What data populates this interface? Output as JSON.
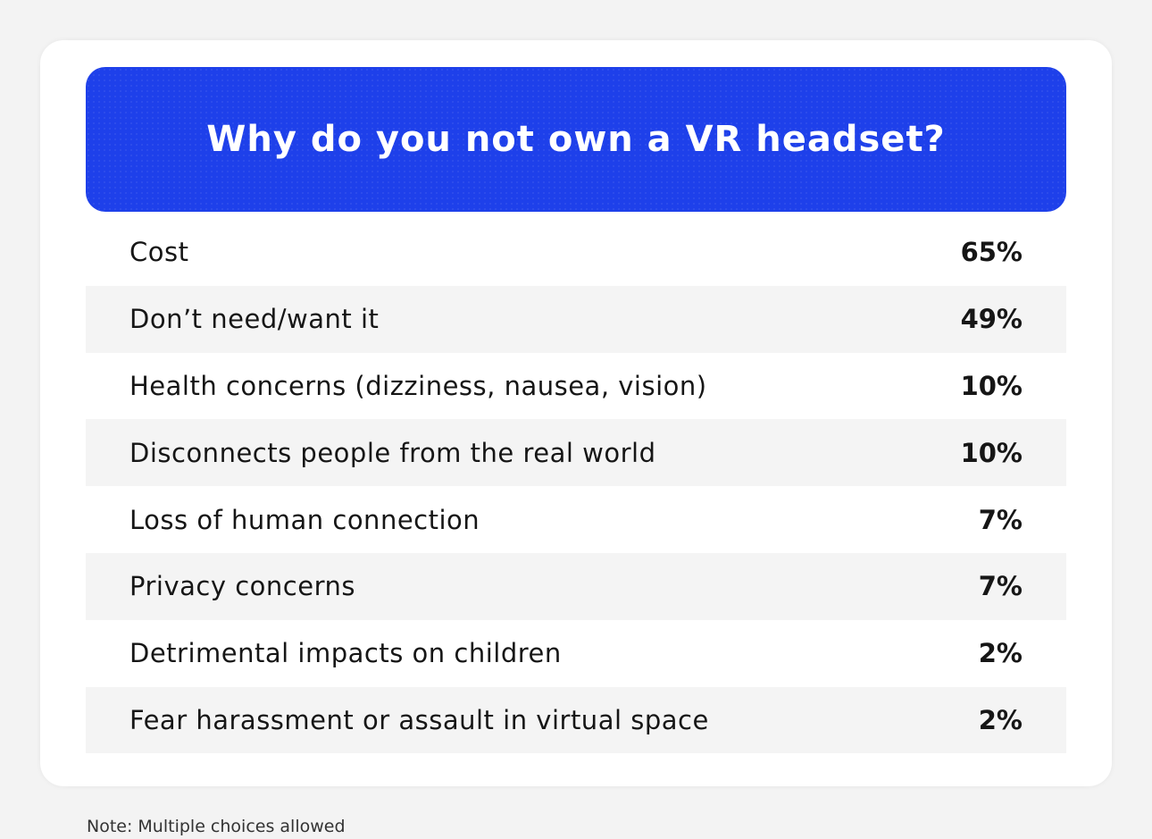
{
  "chart_data": {
    "type": "table",
    "title": "Why do you not own a VR headset?",
    "rows": [
      {
        "label": "Cost",
        "value": "65%"
      },
      {
        "label": "Don’t need/want it",
        "value": "49%"
      },
      {
        "label": "Health concerns (dizziness, nausea, vision)",
        "value": "10%"
      },
      {
        "label": "Disconnects people from the real world",
        "value": "10%"
      },
      {
        "label": "Loss of human connection",
        "value": "7%"
      },
      {
        "label": "Privacy concerns",
        "value": "7%"
      },
      {
        "label": "Detrimental impacts on children",
        "value": "2%"
      },
      {
        "label": "Fear harassment or assault in virtual space",
        "value": "2%"
      }
    ],
    "note": "Note: Multiple choices allowed",
    "colors": {
      "header": "#1e40ea",
      "stripe": "#f4f4f4"
    }
  }
}
